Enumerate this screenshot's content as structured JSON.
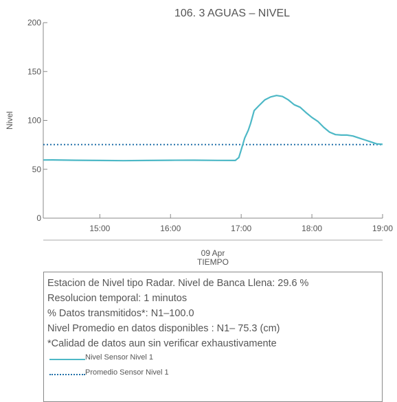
{
  "chart_data": {
    "type": "line",
    "title": "106. 3 AGUAS – NIVEL",
    "ylabel": "Nivel",
    "xlabel": "TIEMPO",
    "date_label": "09 Apr",
    "ylim": [
      0,
      200
    ],
    "yticks": [
      0,
      50,
      100,
      150,
      200
    ],
    "xlim": [
      "14:12",
      "19:00"
    ],
    "xticks": [
      "15:00",
      "16:00",
      "17:00",
      "18:00",
      "19:00"
    ],
    "grid": false,
    "series": [
      {
        "name": "Nivel Sensor Nivel 1",
        "style": "solid",
        "color": "#4db8c6",
        "points": [
          [
            "14:12",
            59.5
          ],
          [
            "14:20",
            59.6
          ],
          [
            "14:40",
            59.2
          ],
          [
            "15:00",
            59.0
          ],
          [
            "15:20",
            58.8
          ],
          [
            "15:40",
            59.0
          ],
          [
            "16:00",
            59.2
          ],
          [
            "16:20",
            59.3
          ],
          [
            "16:40",
            59.1
          ],
          [
            "16:55",
            59.0
          ],
          [
            "16:58",
            62.0
          ],
          [
            "17:00",
            70.0
          ],
          [
            "17:03",
            82.0
          ],
          [
            "17:06",
            90.0
          ],
          [
            "17:08",
            97.0
          ],
          [
            "17:11",
            110.0
          ],
          [
            "17:15",
            115.0
          ],
          [
            "17:20",
            121.0
          ],
          [
            "17:25",
            124.0
          ],
          [
            "17:30",
            125.5
          ],
          [
            "17:35",
            124.5
          ],
          [
            "17:40",
            121.0
          ],
          [
            "17:45",
            116.0
          ],
          [
            "17:50",
            113.5
          ],
          [
            "17:55",
            108.0
          ],
          [
            "18:00",
            103.0
          ],
          [
            "18:05",
            99.0
          ],
          [
            "18:10",
            93.0
          ],
          [
            "18:15",
            88.0
          ],
          [
            "18:20",
            85.5
          ],
          [
            "18:25",
            85.0
          ],
          [
            "18:30",
            85.0
          ],
          [
            "18:35",
            84.0
          ],
          [
            "18:40",
            82.0
          ],
          [
            "18:45",
            80.0
          ],
          [
            "18:50",
            78.0
          ],
          [
            "18:55",
            76.0
          ],
          [
            "19:00",
            75.5
          ]
        ]
      },
      {
        "name": "Promedio Sensor Nivel 1",
        "style": "dotted",
        "color": "#1f6fa8",
        "value": 75.3
      }
    ]
  },
  "info": {
    "lines": [
      "Estacion de Nivel tipo Radar. Nivel de Banca Llena: 29.6 %",
      "Resolucion temporal: 1 minutos",
      "% Datos transmitidos*: N1–100.0",
      "Nivel Promedio en datos disponibles : N1– 75.3 (cm)",
      "*Calidad de datos aun sin verificar exhaustivamente"
    ]
  }
}
